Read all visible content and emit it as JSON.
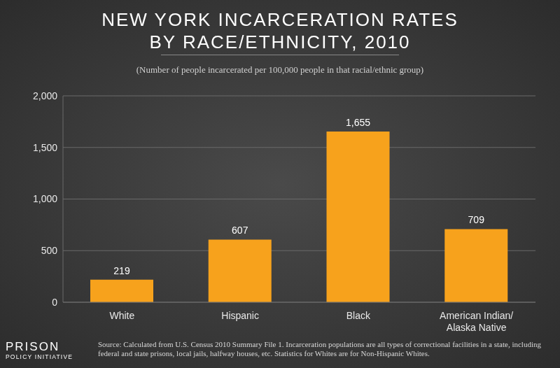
{
  "chart_data": {
    "type": "bar",
    "title": "NEW YORK INCARCERATION RATES\nBY RACE/ETHNICITY, 2010",
    "subtitle": "(Number of people incarcerated per 100,000 people in that racial/ethnic group)",
    "categories": [
      "White",
      "Hispanic",
      "Black",
      "American Indian/\nAlaska Native"
    ],
    "values": [
      219,
      607,
      1655,
      709
    ],
    "value_labels": [
      "219",
      "607",
      "1,655",
      "709"
    ],
    "data_labels": true,
    "color": "#f7a21c",
    "ylim": [
      0,
      2000
    ],
    "yticks": [
      0,
      500,
      {
        "value": 1000,
        "label": "1,000"
      },
      {
        "value": 1500,
        "label": "1,500"
      },
      {
        "value": 2000,
        "label": "2,000"
      }
    ],
    "grid": true,
    "source": "Source: Calculated from U.S. Census 2010 Summary File 1. Incarceration populations are all types of correctional facilities in a state, including federal and state prisons, local jails, halfway houses, etc. Statistics for Whites are for Non-Hispanic Whites.",
    "logo": "PRISON\nPOLICY INITIATIVE"
  }
}
